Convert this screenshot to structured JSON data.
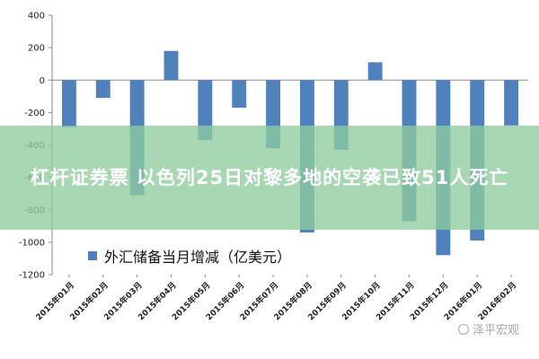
{
  "chart_data": {
    "type": "bar",
    "title": "",
    "xlabel": "",
    "ylabel": "",
    "ylim": [
      -1200,
      400
    ],
    "yticks": [
      400,
      200,
      0,
      -200,
      -400,
      -600,
      -800,
      -1000,
      -1200
    ],
    "categories": [
      "2015年01月",
      "2015年02月",
      "2015年03月",
      "2015年04月",
      "2015年05月",
      "2015年06月",
      "2015年07月",
      "2015年08月",
      "2015年09月",
      "2015年10月",
      "2015年11月",
      "2015年12月",
      "2016年01月",
      "2016年02月"
    ],
    "series": [
      {
        "name": "外汇储备当月增减（亿美元）",
        "values": [
          -290,
          -110,
          -710,
          180,
          -370,
          -170,
          -420,
          -940,
          -430,
          110,
          -870,
          -1080,
          -990,
          -280
        ]
      }
    ],
    "color": "#4f81bd",
    "grid": false,
    "legend_position": "bottom-left"
  },
  "banner": {
    "text": "杠杆证券票 以色列25日对黎多地的空袭已致51人死亡"
  },
  "watermark": {
    "text": "泽平宏观"
  }
}
